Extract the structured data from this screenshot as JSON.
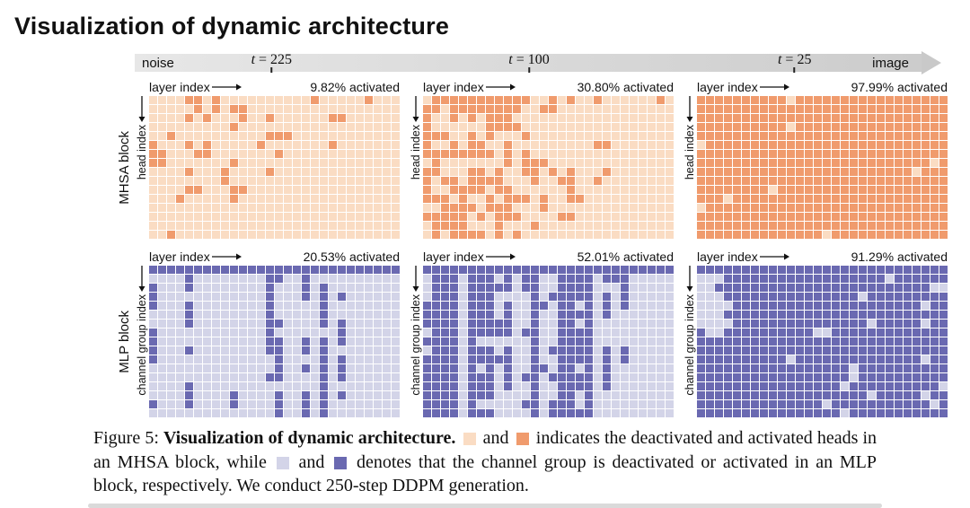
{
  "title": "Visualization of dynamic architecture",
  "timeline": {
    "start_label": "noise",
    "end_label": "image",
    "t_labels": [
      {
        "text": "t = 225"
      },
      {
        "text": "t = 100"
      },
      {
        "text": "t = 25"
      }
    ]
  },
  "blocks": [
    {
      "label": "MHSA block",
      "y_axis": "head index"
    },
    {
      "label": "MLP block",
      "y_axis": "channel group index"
    }
  ],
  "colors": {
    "mhsa_deactivated": "#fadcc3",
    "mhsa_activated": "#f09b6d",
    "mlp_deactivated": "#d3d4e8",
    "mlp_activated": "#6a69b1"
  },
  "caption": {
    "prefix": "Figure 5:",
    "title": "Visualization of dynamic architecture.",
    "and1": "and",
    "seg_mhsa": "indicates the deactivated and activated heads in an MHSA block, while",
    "and2": "and",
    "seg_mlp": "denotes that the channel group is deactivated or activated in an MLP block, respectively. We conduct 250-step DDPM generation."
  },
  "chart_data": [
    {
      "type": "heatmap",
      "id": "mhsa-t225",
      "block": "MHSA block",
      "t": "t = 225",
      "xlabel": "layer index",
      "ylabel": "head index",
      "rows": 16,
      "cols": 28,
      "activated_pct": 9.82,
      "label": "9.82% activated",
      "colors": {
        "off": "#fadcc3",
        "on": "#f09b6d"
      },
      "gen": {
        "seed": 7,
        "randW": 1,
        "colW": 0,
        "leftW": 0.3,
        "topW": 0.15,
        "row0": 0,
        "notch": 0
      }
    },
    {
      "type": "heatmap",
      "id": "mhsa-t100",
      "block": "MHSA block",
      "t": "t = 100",
      "xlabel": "layer index",
      "ylabel": "head index",
      "rows": 16,
      "cols": 28,
      "activated_pct": 30.8,
      "label": "30.80% activated",
      "colors": {
        "off": "#fadcc3",
        "on": "#f09b6d"
      },
      "gen": {
        "seed": 13,
        "randW": 1,
        "colW": 0.25,
        "leftW": 0.9,
        "topW": 0.05,
        "row0": 0.2,
        "notch": 0
      }
    },
    {
      "type": "heatmap",
      "id": "mhsa-t25",
      "block": "MHSA block",
      "t": "t = 25",
      "xlabel": "layer index",
      "ylabel": "head index",
      "rows": 16,
      "cols": 28,
      "activated_pct": 97.99,
      "label": "97.99% activated",
      "colors": {
        "off": "#fadcc3",
        "on": "#f09b6d"
      },
      "gen": {
        "seed": 21,
        "randW": 1,
        "colW": 0,
        "leftW": 0,
        "topW": 0,
        "row0": 0,
        "notch": 0
      }
    },
    {
      "type": "heatmap",
      "id": "mlp-t225",
      "block": "MLP block",
      "t": "t = 225",
      "xlabel": "layer index",
      "ylabel": "channel group index",
      "rows": 17,
      "cols": 28,
      "activated_pct": 20.53,
      "label": "20.53% activated",
      "colors": {
        "off": "#d3d4e8",
        "on": "#6a69b1"
      },
      "gen": {
        "seed": 5,
        "randW": 0.35,
        "colW": 0.85,
        "leftW": 0.15,
        "topW": 0,
        "row0": 1.2,
        "notch": 0
      }
    },
    {
      "type": "heatmap",
      "id": "mlp-t100",
      "block": "MLP block",
      "t": "t = 100",
      "xlabel": "layer index",
      "ylabel": "channel group index",
      "rows": 17,
      "cols": 28,
      "activated_pct": 52.01,
      "label": "52.01% activated",
      "colors": {
        "off": "#d3d4e8",
        "on": "#6a69b1"
      },
      "gen": {
        "seed": 9,
        "randW": 0.4,
        "colW": 0.8,
        "leftW": 0.45,
        "topW": 0.05,
        "row0": 1.2,
        "notch": 0
      }
    },
    {
      "type": "heatmap",
      "id": "mlp-t25",
      "block": "MLP block",
      "t": "t = 25",
      "xlabel": "layer index",
      "ylabel": "channel group index",
      "rows": 17,
      "cols": 28,
      "activated_pct": 91.29,
      "label": "91.29% activated",
      "colors": {
        "off": "#d3d4e8",
        "on": "#6a69b1"
      },
      "gen": {
        "seed": 3,
        "randW": 1,
        "colW": 0.15,
        "leftW": 0,
        "topW": 0,
        "row0": 0.5,
        "notch": 3
      }
    }
  ]
}
